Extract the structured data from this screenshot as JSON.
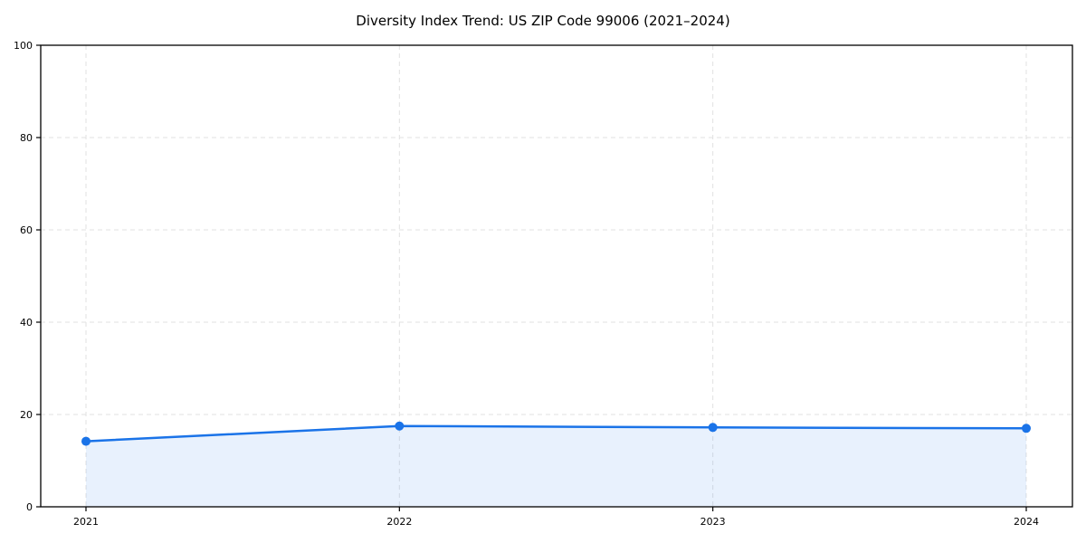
{
  "chart_data": {
    "type": "line",
    "title": "Diversity Index Trend: US ZIP Code 99006 (2021–2024)",
    "x": [
      "2021",
      "2022",
      "2023",
      "2024"
    ],
    "series": [
      {
        "name": "Diversity Index",
        "values": [
          14.2,
          17.5,
          17.2,
          17.0
        ]
      }
    ],
    "xlabel": "",
    "ylabel": "",
    "ylim": [
      0,
      100
    ],
    "yticks": [
      0,
      20,
      40,
      60,
      80,
      100
    ],
    "grid": true,
    "grid_style": "dashed",
    "legend_position": "none",
    "line_color": "#1a73e8",
    "marker": "circle",
    "marker_radius": 5,
    "area_fill": true,
    "area_fill_color": "#1a73e8",
    "area_fill_opacity": 0.1,
    "grid_color": "#e2e2e2",
    "axis_color": "#000000",
    "plot_background": "#ffffff"
  }
}
